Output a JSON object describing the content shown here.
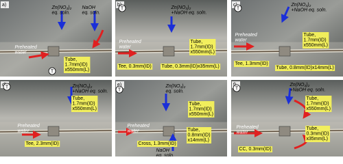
{
  "panels": [
    {
      "label": "a)",
      "thermo": "T",
      "notes": [
        [
          "Zn(NO₃)₂",
          "eq. soln."
        ],
        [
          "NaOH",
          "eq. soln."
        ],
        [
          "Preheated",
          "water"
        ],
        [
          "Tube,",
          "1.7mm(ID)",
          "x550mm(L)"
        ]
      ]
    },
    {
      "label": "b)",
      "thermo": "T",
      "notes": [
        [
          "Zn(NO₃)₂",
          "+NaOH eq. soln."
        ],
        [
          "Preheated",
          "water"
        ],
        [
          "Tee, 0.3mm(ID)"
        ],
        [
          "Tube, 0.3mm(ID)x35mm(L)"
        ],
        [
          "Tube,",
          "1.7mm(ID)",
          "x550mm(L)"
        ]
      ]
    },
    {
      "label": "c)",
      "thermo": "T",
      "notes": [
        [
          "Zn(NO₃)₂",
          "+NaOH eq. soln."
        ],
        [
          "Preheated",
          "water"
        ],
        [
          "Tube,",
          "1.7mm(ID)",
          "x550mm(L)"
        ],
        [
          "Tee, 1.3mm(ID)"
        ],
        [
          "Tube, 0.8mm(ID)x14mm(L)"
        ]
      ]
    },
    {
      "label": "d)",
      "thermo": "T",
      "notes": [
        [
          "Zn(NO₃)₂",
          "+NaOH eq. soln."
        ],
        [
          "Tube,",
          "1.7mm(ID)",
          "x550mm(L)"
        ],
        [
          "Preheated",
          "water"
        ],
        [
          "Tee, 2.3mm(ID)"
        ]
      ]
    },
    {
      "label": "e)",
      "thermo": "T",
      "notes": [
        [
          "Zn(NO₃)₂",
          "eq. soln."
        ],
        [
          "Preheated",
          "water"
        ],
        [
          "Tube,",
          "1.7mm(ID)",
          "x550mm(L)"
        ],
        [
          "Cross, 1.3mm(ID)"
        ],
        [
          "Tube,",
          "0.8mm(ID)",
          "x14mm(L)"
        ],
        [
          "NaOH",
          "eq. soln."
        ]
      ]
    },
    {
      "label": "f)",
      "thermo": "T",
      "notes": [
        [
          "Zn(NO₃)₂",
          "+NaOH eq. soln."
        ],
        [
          "Preheated",
          "water"
        ],
        [
          "Tube,",
          "1.7mm(ID)",
          "x550mm(L)"
        ],
        [
          "CC, 0.3mm(ID)"
        ],
        [
          "Tube,",
          "0.3mm(ID)",
          "x35mm(L)"
        ]
      ]
    }
  ]
}
